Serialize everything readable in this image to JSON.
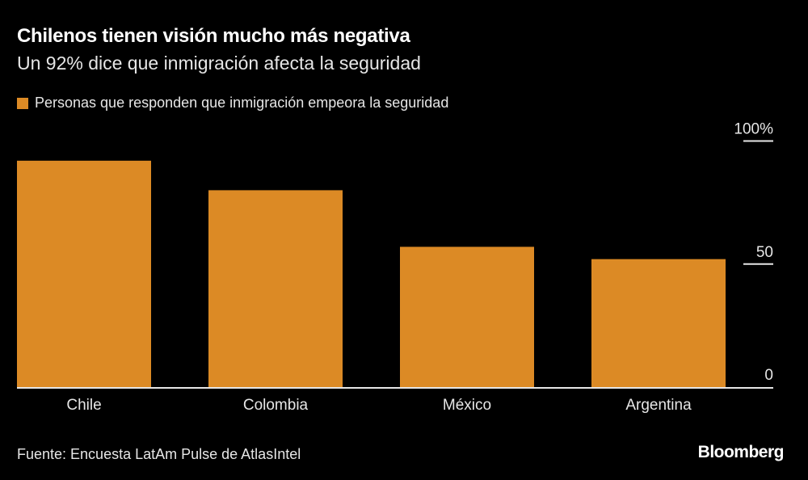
{
  "chart_data": {
    "type": "bar",
    "title": "Chilenos tienen visión mucho más negativa",
    "subtitle": "Un 92% dice que inmigración afecta la seguridad",
    "categories": [
      "Chile",
      "Colombia",
      "México",
      "Argentina"
    ],
    "series": [
      {
        "name": "Personas que responden que inmigración empeora la seguridad",
        "values": [
          92,
          80,
          57,
          52
        ],
        "color": "#dc8a25"
      }
    ],
    "ylim": [
      0,
      100
    ],
    "yticks": [
      0,
      50,
      100
    ],
    "ytick_labels": [
      "0",
      "50",
      "100%"
    ],
    "y_axis_side": "right",
    "grid": false,
    "legend": "top-left"
  },
  "source": "Fuente: Encuesta LatAm Pulse de AtlasIntel",
  "brand": "Bloomberg"
}
